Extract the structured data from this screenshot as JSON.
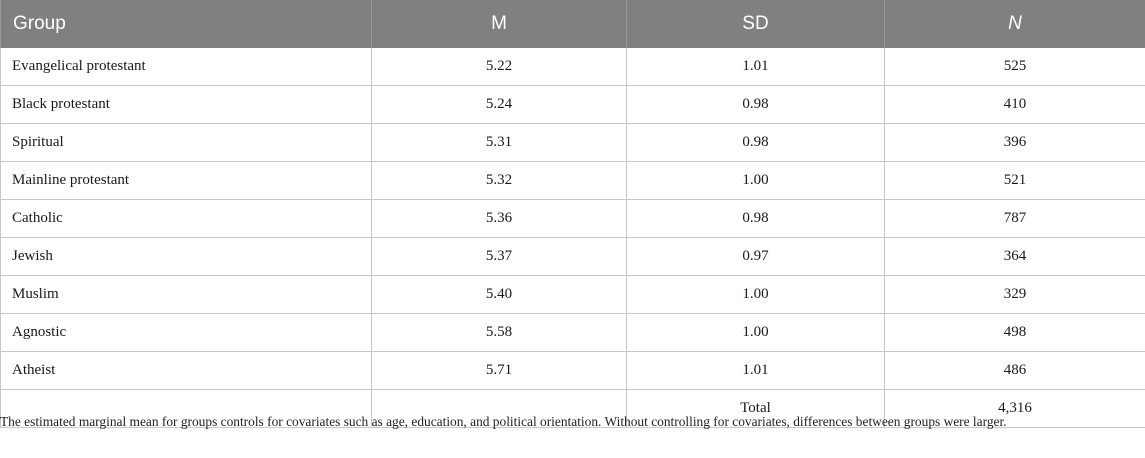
{
  "table": {
    "headers": {
      "group": "Group",
      "m": "M",
      "sd": "SD",
      "n": "N"
    },
    "rows": [
      {
        "group": "Evangelical protestant",
        "m": "5.22",
        "sd": "1.01",
        "n": "525"
      },
      {
        "group": "Black protestant",
        "m": "5.24",
        "sd": "0.98",
        "n": "410"
      },
      {
        "group": "Spiritual",
        "m": "5.31",
        "sd": "0.98",
        "n": "396"
      },
      {
        "group": "Mainline protestant",
        "m": "5.32",
        "sd": "1.00",
        "n": "521"
      },
      {
        "group": "Catholic",
        "m": "5.36",
        "sd": "0.98",
        "n": "787"
      },
      {
        "group": "Jewish",
        "m": "5.37",
        "sd": "0.97",
        "n": "364"
      },
      {
        "group": "Muslim",
        "m": "5.40",
        "sd": "1.00",
        "n": "329"
      },
      {
        "group": "Agnostic",
        "m": "5.58",
        "sd": "1.00",
        "n": "498"
      },
      {
        "group": "Atheist",
        "m": "5.71",
        "sd": "1.01",
        "n": "486"
      }
    ],
    "total_row": {
      "group": "",
      "m": "",
      "sd": "Total",
      "n": "4,316"
    },
    "colors": {
      "header_bg": "#808080",
      "header_text": "#ffffff",
      "grid_line": "#c8c8c8"
    }
  },
  "footnote": "The estimated marginal mean for groups controls for covariates such as age, education, and political orientation. Without controlling for covariates, differences between groups were larger."
}
